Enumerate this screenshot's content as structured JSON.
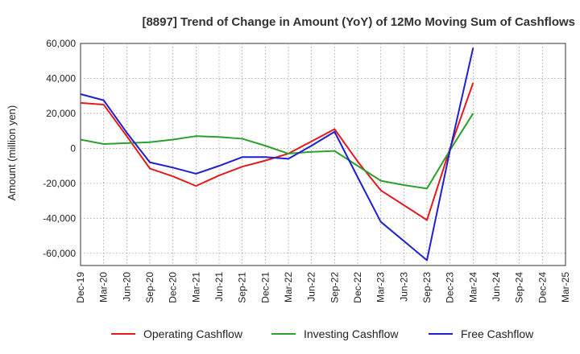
{
  "chart_data": {
    "type": "line",
    "title": "[8897]  Trend of Change in Amount (YoY) of 12Mo Moving Sum of Cashflows",
    "xlabel": "",
    "ylabel": "Amount (million yen)",
    "ylim": [
      -67000,
      60000
    ],
    "yticks": [
      60000,
      40000,
      20000,
      0,
      -20000,
      -40000,
      -60000
    ],
    "ytick_labels": [
      "60,000",
      "40,000",
      "20,000",
      "0",
      "-20,000",
      "-40,000",
      "-60,000"
    ],
    "categories": [
      "Dec-19",
      "Mar-20",
      "Jun-20",
      "Sep-20",
      "Dec-20",
      "Mar-21",
      "Jun-21",
      "Sep-21",
      "Dec-21",
      "Mar-22",
      "Jun-22",
      "Sep-22",
      "Dec-22",
      "Mar-23",
      "Jun-23",
      "Sep-23",
      "Dec-23",
      "Mar-24",
      "Jun-24",
      "Sep-24",
      "Dec-24",
      "Mar-25"
    ],
    "grid": true,
    "legend_position": "bottom",
    "series": [
      {
        "name": "Operating Cashflow",
        "color": "#e41a1c",
        "values": [
          26000,
          25000,
          7000,
          -11500,
          -16000,
          -21500,
          -15500,
          -10500,
          -7000,
          -3000,
          4000,
          11000,
          -7500,
          -24000,
          -32500,
          -41000,
          0,
          37500,
          null,
          null,
          null,
          null
        ]
      },
      {
        "name": "Investing Cashflow",
        "color": "#2ca02c",
        "values": [
          5000,
          2500,
          3000,
          3500,
          5000,
          7000,
          6500,
          5500,
          1500,
          -3000,
          -2000,
          -1500,
          -10000,
          -18500,
          -21000,
          -23000,
          -1000,
          20000,
          null,
          null,
          null,
          null
        ]
      },
      {
        "name": "Free Cashflow",
        "color": "#1f1fd0",
        "values": [
          31000,
          27500,
          9000,
          -8000,
          -11000,
          -14500,
          -10000,
          -5000,
          -5000,
          -6000,
          1500,
          9500,
          -16500,
          -42000,
          -53000,
          -64000,
          -1000,
          57500,
          null,
          null,
          null,
          null
        ]
      }
    ]
  }
}
